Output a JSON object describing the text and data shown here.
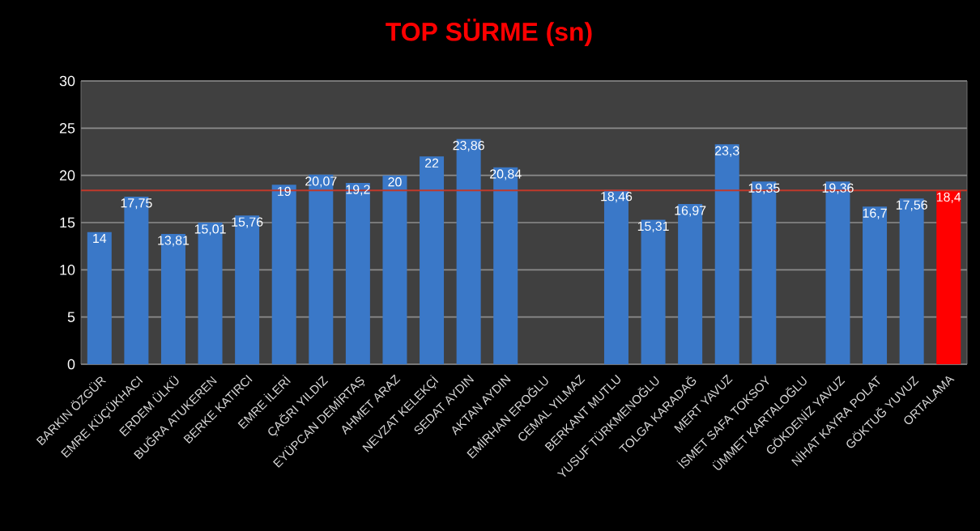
{
  "chart_data": {
    "type": "bar",
    "title": "TOP SÜRME (sn)",
    "categories": [
      "BARKIN ÖZGÜR",
      "EMRE KÜÇÜKHACI",
      "ERDEM ÜLKÜ",
      "BUĞRA ATUKEREN",
      "BERKE KATIRCI",
      "EMRE İLERİ",
      "ÇAĞRI YILDIZ",
      "EYÜPCAN DEMİRTAŞ",
      "AHMET ARAZ",
      "NEVZAT KELEKÇİ",
      "SEDAT AYDIN",
      "AKTAN AYDIN",
      "EMİRHAN EROĞLU",
      "CEMAL YILMAZ",
      "BERKANT MUTLU",
      "YUSUF TÜRKMENOĞLU",
      "TOLGA KARADAĞ",
      "MERT YAVUZ",
      "İSMET SAFA TOKSOY",
      "ÜMMET KARTALOĞLU",
      "GÖKDENİZ YAVUZ",
      "NİHAT KAYRA POLAT",
      "GÖKTUĞ YUVUZ",
      "ORTALAMA"
    ],
    "values": [
      14,
      17.75,
      13.81,
      15.01,
      15.76,
      19,
      20.07,
      19.2,
      20,
      22,
      23.86,
      20.84,
      null,
      null,
      18.46,
      15.31,
      16.97,
      23.3,
      19.35,
      null,
      19.36,
      16.7,
      17.56,
      18.4
    ],
    "value_labels": [
      "14",
      "17,75",
      "13,81",
      "15,01",
      "15,76",
      "19",
      "20,07",
      "19,2",
      "20",
      "22",
      "23,86",
      "20,84",
      null,
      null,
      "18,46",
      "15,31",
      "16,97",
      "23,3",
      "19,35",
      null,
      "19,36",
      "16,7",
      "17,56",
      "18,4"
    ],
    "colors": [
      "#3a78c8",
      "#3a78c8",
      "#3a78c8",
      "#3a78c8",
      "#3a78c8",
      "#3a78c8",
      "#3a78c8",
      "#3a78c8",
      "#3a78c8",
      "#3a78c8",
      "#3a78c8",
      "#3a78c8",
      "#3a78c8",
      "#3a78c8",
      "#3a78c8",
      "#3a78c8",
      "#3a78c8",
      "#3a78c8",
      "#3a78c8",
      "#3a78c8",
      "#3a78c8",
      "#3a78c8",
      "#3a78c8",
      "#ff0000"
    ],
    "ylim": [
      0,
      30
    ],
    "yticks": [
      0,
      5,
      10,
      15,
      20,
      25,
      30
    ],
    "grid": "y",
    "ref_lines": [
      {
        "axis": "y",
        "value": 18.4,
        "color": "#c0392b"
      }
    ]
  }
}
